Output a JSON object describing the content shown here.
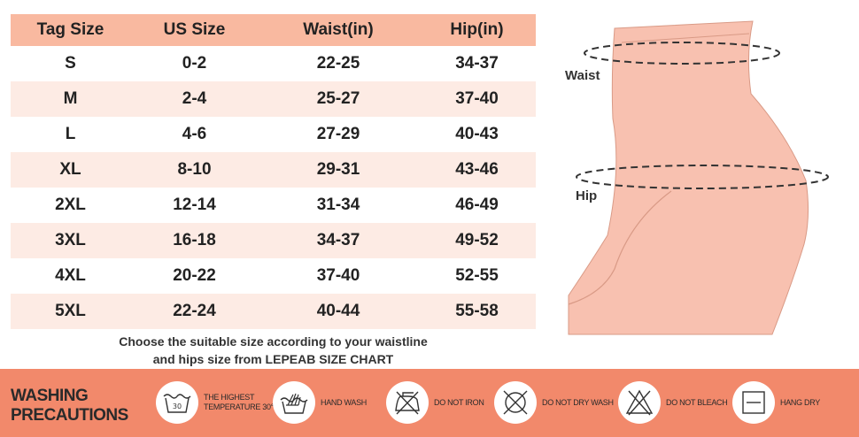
{
  "table": {
    "headers": [
      "Tag Size",
      "US Size",
      "Waist(in)",
      "Hip(in)"
    ],
    "rows": [
      [
        "S",
        "0-2",
        "22-25",
        "34-37"
      ],
      [
        "M",
        "2-4",
        "25-27",
        "37-40"
      ],
      [
        "L",
        "4-6",
        "27-29",
        "40-43"
      ],
      [
        "XL",
        "8-10",
        "29-31",
        "43-46"
      ],
      [
        "2XL",
        "12-14",
        "31-34",
        "46-49"
      ],
      [
        "3XL",
        "16-18",
        "34-37",
        "49-52"
      ],
      [
        "4XL",
        "20-22",
        "37-40",
        "52-55"
      ],
      [
        "5XL",
        "22-24",
        "40-44",
        "55-58"
      ]
    ]
  },
  "note": {
    "line1": "Choose the suitable size according to your waistline",
    "line2": "and hips size from LEPEAB SIZE CHART"
  },
  "figure": {
    "waist_label": "Waist",
    "hip_label": "Hip",
    "garment_color": "#f8c1b0"
  },
  "washing": {
    "title_line1": "WASHING",
    "title_line2": "PRECAUTIONS",
    "bar_color": "#f2896b",
    "items": [
      {
        "icon": "wash-30-icon",
        "label_line1": "THE HIGHEST",
        "label_line2": "TEMPERATURE 30°",
        "temp": "30"
      },
      {
        "icon": "hand-wash-icon",
        "label_line1": "HAND WASH",
        "label_line2": ""
      },
      {
        "icon": "do-not-iron-icon",
        "label_line1": "DO NOT IRON",
        "label_line2": ""
      },
      {
        "icon": "do-not-dry-wash-icon",
        "label_line1": "DO NOT DRY WASH",
        "label_line2": ""
      },
      {
        "icon": "do-not-bleach-icon",
        "label_line1": "DO NOT BLEACH",
        "label_line2": ""
      },
      {
        "icon": "hang-dry-icon",
        "label_line1": "HANG DRY",
        "label_line2": ""
      }
    ]
  }
}
